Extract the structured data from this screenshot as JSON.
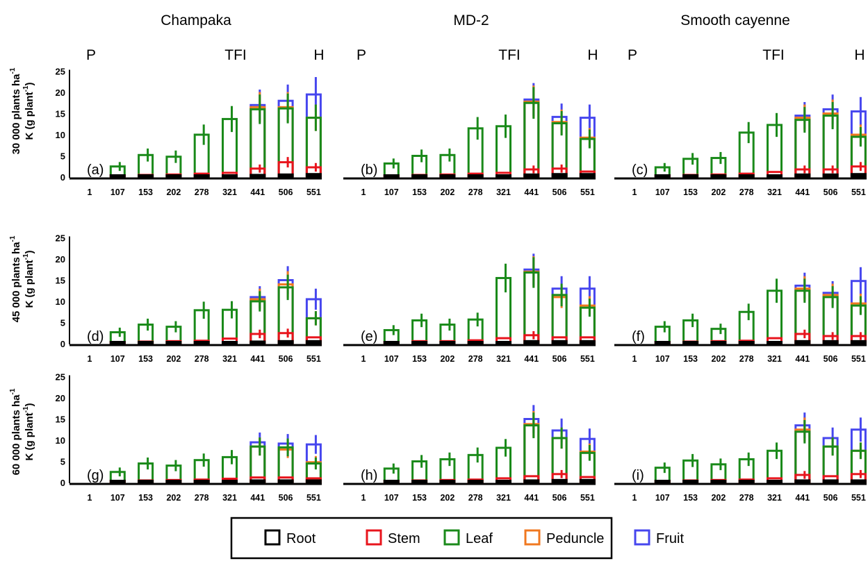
{
  "figure": {
    "column_titles": [
      "Champaka",
      "MD-2",
      "Smooth cayenne"
    ],
    "row_labels": [
      {
        "line1": "30 000 plants ha",
        "sup1": "-1",
        "line2": "K (g plant",
        "sup2": "-1",
        "close": ")"
      },
      {
        "line1": "45 000 plants ha",
        "sup1": "-1",
        "line2": "K (g plant",
        "sup2": "-1",
        "close": ")"
      },
      {
        "line1": "60 000 plants ha",
        "sup1": "-1",
        "line2": "K (g plant",
        "sup2": "-1",
        "close": ")"
      }
    ],
    "stage_markers": [
      "P",
      "TFI",
      "H"
    ],
    "legend": [
      {
        "label": "Root",
        "color": "#000000"
      },
      {
        "label": "Stem",
        "color": "#e8141c"
      },
      {
        "label": "Leaf",
        "color": "#1a8a1a"
      },
      {
        "label": "Peduncle",
        "color": "#f07820"
      },
      {
        "label": "Fruit",
        "color": "#4646ee"
      }
    ]
  },
  "chart_data": {
    "type": "bar",
    "ylim": [
      0,
      25
    ],
    "yticks": [
      0,
      5,
      10,
      15,
      20,
      25
    ],
    "categories": [
      "1",
      "107",
      "153",
      "202",
      "278",
      "321",
      "441",
      "506",
      "551"
    ],
    "series_order": [
      "Root",
      "Stem",
      "Leaf",
      "Peduncle",
      "Fruit"
    ],
    "panels": [
      {
        "label": "(a)",
        "cultivar": "Champaka",
        "density": "30 000",
        "Root": [
          null,
          0.2,
          0.3,
          0.3,
          0.3,
          0.4,
          0.5,
          0.6,
          0.7
        ],
        "Stem": [
          null,
          0.4,
          0.5,
          0.6,
          0.8,
          1.0,
          2.0,
          3.5,
          2.3
        ],
        "Leaf": [
          null,
          2.5,
          5.2,
          4.8,
          10.0,
          13.7,
          16.0,
          16.2,
          14.0
        ],
        "Peduncle": [
          null,
          null,
          null,
          null,
          null,
          null,
          16.5,
          16.5,
          14.0
        ],
        "Fruit": [
          null,
          null,
          null,
          null,
          null,
          null,
          17.0,
          18.0,
          19.5
        ]
      },
      {
        "label": "(b)",
        "cultivar": "MD-2",
        "density": "30 000",
        "Root": [
          null,
          0.2,
          0.3,
          0.3,
          0.3,
          0.4,
          0.6,
          0.7,
          0.7
        ],
        "Stem": [
          null,
          0.4,
          0.5,
          0.6,
          0.8,
          1.0,
          1.8,
          2.0,
          1.3
        ],
        "Leaf": [
          null,
          3.2,
          5.0,
          5.2,
          11.5,
          12.0,
          17.5,
          12.7,
          9.0
        ],
        "Peduncle": [
          null,
          null,
          null,
          null,
          null,
          null,
          17.8,
          13.0,
          9.3
        ],
        "Fruit": [
          null,
          null,
          null,
          null,
          null,
          null,
          18.3,
          14.2,
          14.0
        ]
      },
      {
        "label": "(c)",
        "cultivar": "Smooth cayenne",
        "density": "30 000",
        "Root": [
          null,
          0.2,
          0.3,
          0.3,
          0.3,
          0.4,
          0.6,
          0.6,
          0.7
        ],
        "Stem": [
          null,
          0.4,
          0.5,
          0.6,
          0.8,
          1.2,
          1.8,
          1.8,
          2.5
        ],
        "Leaf": [
          null,
          2.3,
          4.3,
          4.5,
          10.5,
          12.3,
          13.5,
          14.5,
          9.5
        ],
        "Peduncle": [
          null,
          null,
          null,
          null,
          null,
          null,
          14.0,
          15.0,
          10.0
        ],
        "Fruit": [
          null,
          null,
          null,
          null,
          null,
          null,
          14.5,
          16.0,
          15.5
        ]
      },
      {
        "label": "(d)",
        "cultivar": "Champaka",
        "density": "45 000",
        "Root": [
          null,
          0.2,
          0.3,
          0.3,
          0.3,
          0.4,
          0.5,
          0.6,
          0.6
        ],
        "Stem": [
          null,
          0.4,
          0.5,
          0.6,
          0.7,
          1.2,
          2.3,
          2.5,
          1.5
        ],
        "Leaf": [
          null,
          2.7,
          4.5,
          4.0,
          7.9,
          8.0,
          10.0,
          13.3,
          6.0
        ],
        "Peduncle": [
          null,
          null,
          null,
          null,
          null,
          null,
          10.5,
          14.0,
          6.0
        ],
        "Fruit": [
          null,
          null,
          null,
          null,
          null,
          null,
          11.0,
          15.0,
          10.5
        ]
      },
      {
        "label": "(e)",
        "cultivar": "MD-2",
        "density": "45 000",
        "Root": [
          null,
          0.2,
          0.3,
          0.3,
          0.3,
          0.4,
          0.6,
          0.6,
          0.6
        ],
        "Stem": [
          null,
          0.4,
          0.6,
          0.6,
          0.8,
          1.3,
          2.0,
          1.5,
          1.5
        ],
        "Leaf": [
          null,
          3.2,
          5.5,
          4.5,
          5.7,
          15.5,
          16.8,
          11.5,
          8.5
        ],
        "Peduncle": [
          null,
          null,
          null,
          null,
          null,
          null,
          17.0,
          11.0,
          9.0
        ],
        "Fruit": [
          null,
          null,
          null,
          null,
          null,
          null,
          17.5,
          13.0,
          13.0
        ]
      },
      {
        "label": "(f)",
        "cultivar": "Smooth cayenne",
        "density": "45 000",
        "Root": [
          null,
          0.2,
          0.3,
          0.3,
          0.3,
          0.4,
          0.6,
          0.6,
          0.6
        ],
        "Stem": [
          null,
          0.4,
          0.5,
          0.6,
          0.7,
          1.3,
          2.3,
          1.8,
          1.8
        ],
        "Leaf": [
          null,
          4.0,
          5.5,
          3.5,
          7.5,
          12.5,
          12.5,
          11.0,
          9.0
        ],
        "Peduncle": [
          null,
          null,
          null,
          null,
          null,
          null,
          13.0,
          11.5,
          9.5
        ],
        "Fruit": [
          null,
          null,
          null,
          null,
          null,
          null,
          13.7,
          12.0,
          14.8
        ]
      },
      {
        "label": "(g)",
        "cultivar": "Champaka",
        "density": "60 000",
        "Root": [
          null,
          0.2,
          0.3,
          0.3,
          0.3,
          0.4,
          0.5,
          0.5,
          0.5
        ],
        "Stem": [
          null,
          0.4,
          0.5,
          0.6,
          0.7,
          0.9,
          1.2,
          1.2,
          1.0
        ],
        "Leaf": [
          null,
          2.5,
          4.5,
          4.0,
          5.3,
          6.0,
          8.5,
          8.3,
          4.5
        ],
        "Peduncle": [
          null,
          null,
          null,
          null,
          null,
          null,
          8.5,
          7.8,
          4.8
        ],
        "Fruit": [
          null,
          null,
          null,
          null,
          null,
          null,
          9.5,
          9.2,
          9.0
        ]
      },
      {
        "label": "(h)",
        "cultivar": "MD-2",
        "density": "60 000",
        "Root": [
          null,
          0.2,
          0.3,
          0.3,
          0.3,
          0.4,
          0.5,
          0.6,
          0.6
        ],
        "Stem": [
          null,
          0.4,
          0.5,
          0.6,
          0.7,
          1.0,
          1.5,
          2.0,
          1.3
        ],
        "Leaf": [
          null,
          3.3,
          5.0,
          5.5,
          6.5,
          8.2,
          13.5,
          10.5,
          7.0
        ],
        "Peduncle": [
          null,
          null,
          null,
          null,
          null,
          null,
          13.8,
          10.5,
          7.3
        ],
        "Fruit": [
          null,
          null,
          null,
          null,
          null,
          null,
          15.0,
          12.3,
          10.3
        ]
      },
      {
        "label": "(i)",
        "cultivar": "Smooth cayenne",
        "density": "60 000",
        "Root": [
          null,
          0.2,
          0.3,
          0.3,
          0.3,
          0.4,
          0.5,
          0.5,
          0.5
        ],
        "Stem": [
          null,
          0.4,
          0.5,
          0.6,
          0.7,
          1.0,
          1.8,
          1.5,
          2.0
        ],
        "Leaf": [
          null,
          3.5,
          5.2,
          4.3,
          5.5,
          7.5,
          12.0,
          8.5,
          7.5
        ],
        "Peduncle": [
          null,
          null,
          null,
          null,
          null,
          null,
          12.5,
          8.5,
          7.5
        ],
        "Fruit": [
          null,
          null,
          null,
          null,
          null,
          null,
          13.5,
          10.5,
          12.5
        ]
      }
    ]
  }
}
